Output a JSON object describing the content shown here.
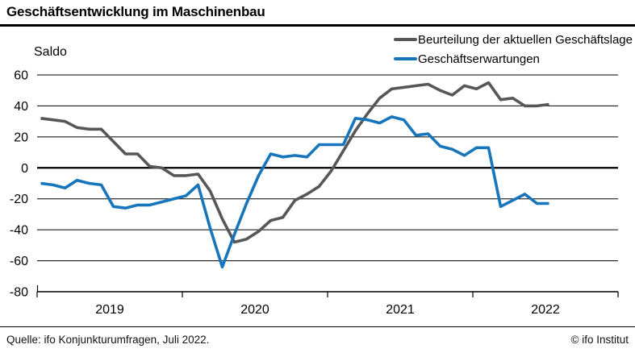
{
  "header": {
    "title": "Geschäftsentwicklung im Maschinenbau"
  },
  "chart": {
    "y_axis_title": "Saldo",
    "legend": [
      {
        "label": "Beurteilung der aktuellen Geschäftslage",
        "color": "#575757"
      },
      {
        "label": "Geschäftserwartungen",
        "color": "#1776bb"
      }
    ]
  },
  "chart_data": {
    "type": "line",
    "title": "Geschäftsentwicklung im Maschinenbau",
    "xlabel": "",
    "ylabel": "Saldo",
    "ylim": [
      -80,
      60
    ],
    "y_ticks": [
      60,
      40,
      20,
      0,
      -20,
      -40,
      -60,
      -80
    ],
    "grid": "horizontal",
    "legend_position": "top-right",
    "x_year_labels": [
      "2019",
      "2020",
      "2021",
      "2022"
    ],
    "x": [
      "2019-01",
      "2019-02",
      "2019-03",
      "2019-04",
      "2019-05",
      "2019-06",
      "2019-07",
      "2019-08",
      "2019-09",
      "2019-10",
      "2019-11",
      "2019-12",
      "2020-01",
      "2020-02",
      "2020-03",
      "2020-04",
      "2020-05",
      "2020-06",
      "2020-07",
      "2020-08",
      "2020-09",
      "2020-10",
      "2020-11",
      "2020-12",
      "2021-01",
      "2021-02",
      "2021-03",
      "2021-04",
      "2021-05",
      "2021-06",
      "2021-07",
      "2021-08",
      "2021-09",
      "2021-10",
      "2021-11",
      "2021-12",
      "2022-01",
      "2022-02",
      "2022-03",
      "2022-04",
      "2022-05",
      "2022-06",
      "2022-07"
    ],
    "series": [
      {
        "name": "Beurteilung der aktuellen Geschäftslage",
        "color": "#575757",
        "values": [
          32,
          31,
          30,
          26,
          25,
          25,
          17,
          9,
          9,
          1,
          0,
          -5,
          -5,
          -4,
          -15,
          -33,
          -48,
          -46,
          -41,
          -34,
          -32,
          -21,
          -17,
          -12,
          -2,
          11,
          24,
          35,
          45,
          51,
          52,
          53,
          54,
          50,
          47,
          53,
          51,
          55,
          44,
          45,
          40,
          40,
          41
        ]
      },
      {
        "name": "Geschäftserwartungen",
        "color": "#1776bb",
        "values": [
          -10,
          -11,
          -13,
          -8,
          -10,
          -11,
          -25,
          -26,
          -24,
          -24,
          -22,
          -20,
          -18,
          -11,
          -39,
          -64,
          -43,
          -23,
          -5,
          9,
          7,
          8,
          7,
          15,
          15,
          15,
          32,
          31,
          29,
          33,
          31,
          21,
          22,
          14,
          12,
          8,
          13,
          13,
          -25,
          -21,
          -17,
          -23,
          -23
        ]
      }
    ]
  },
  "footer": {
    "source": "Quelle: ifo Konjunkturumfragen, Juli 2022.",
    "copyright": "© ifo Institut"
  }
}
